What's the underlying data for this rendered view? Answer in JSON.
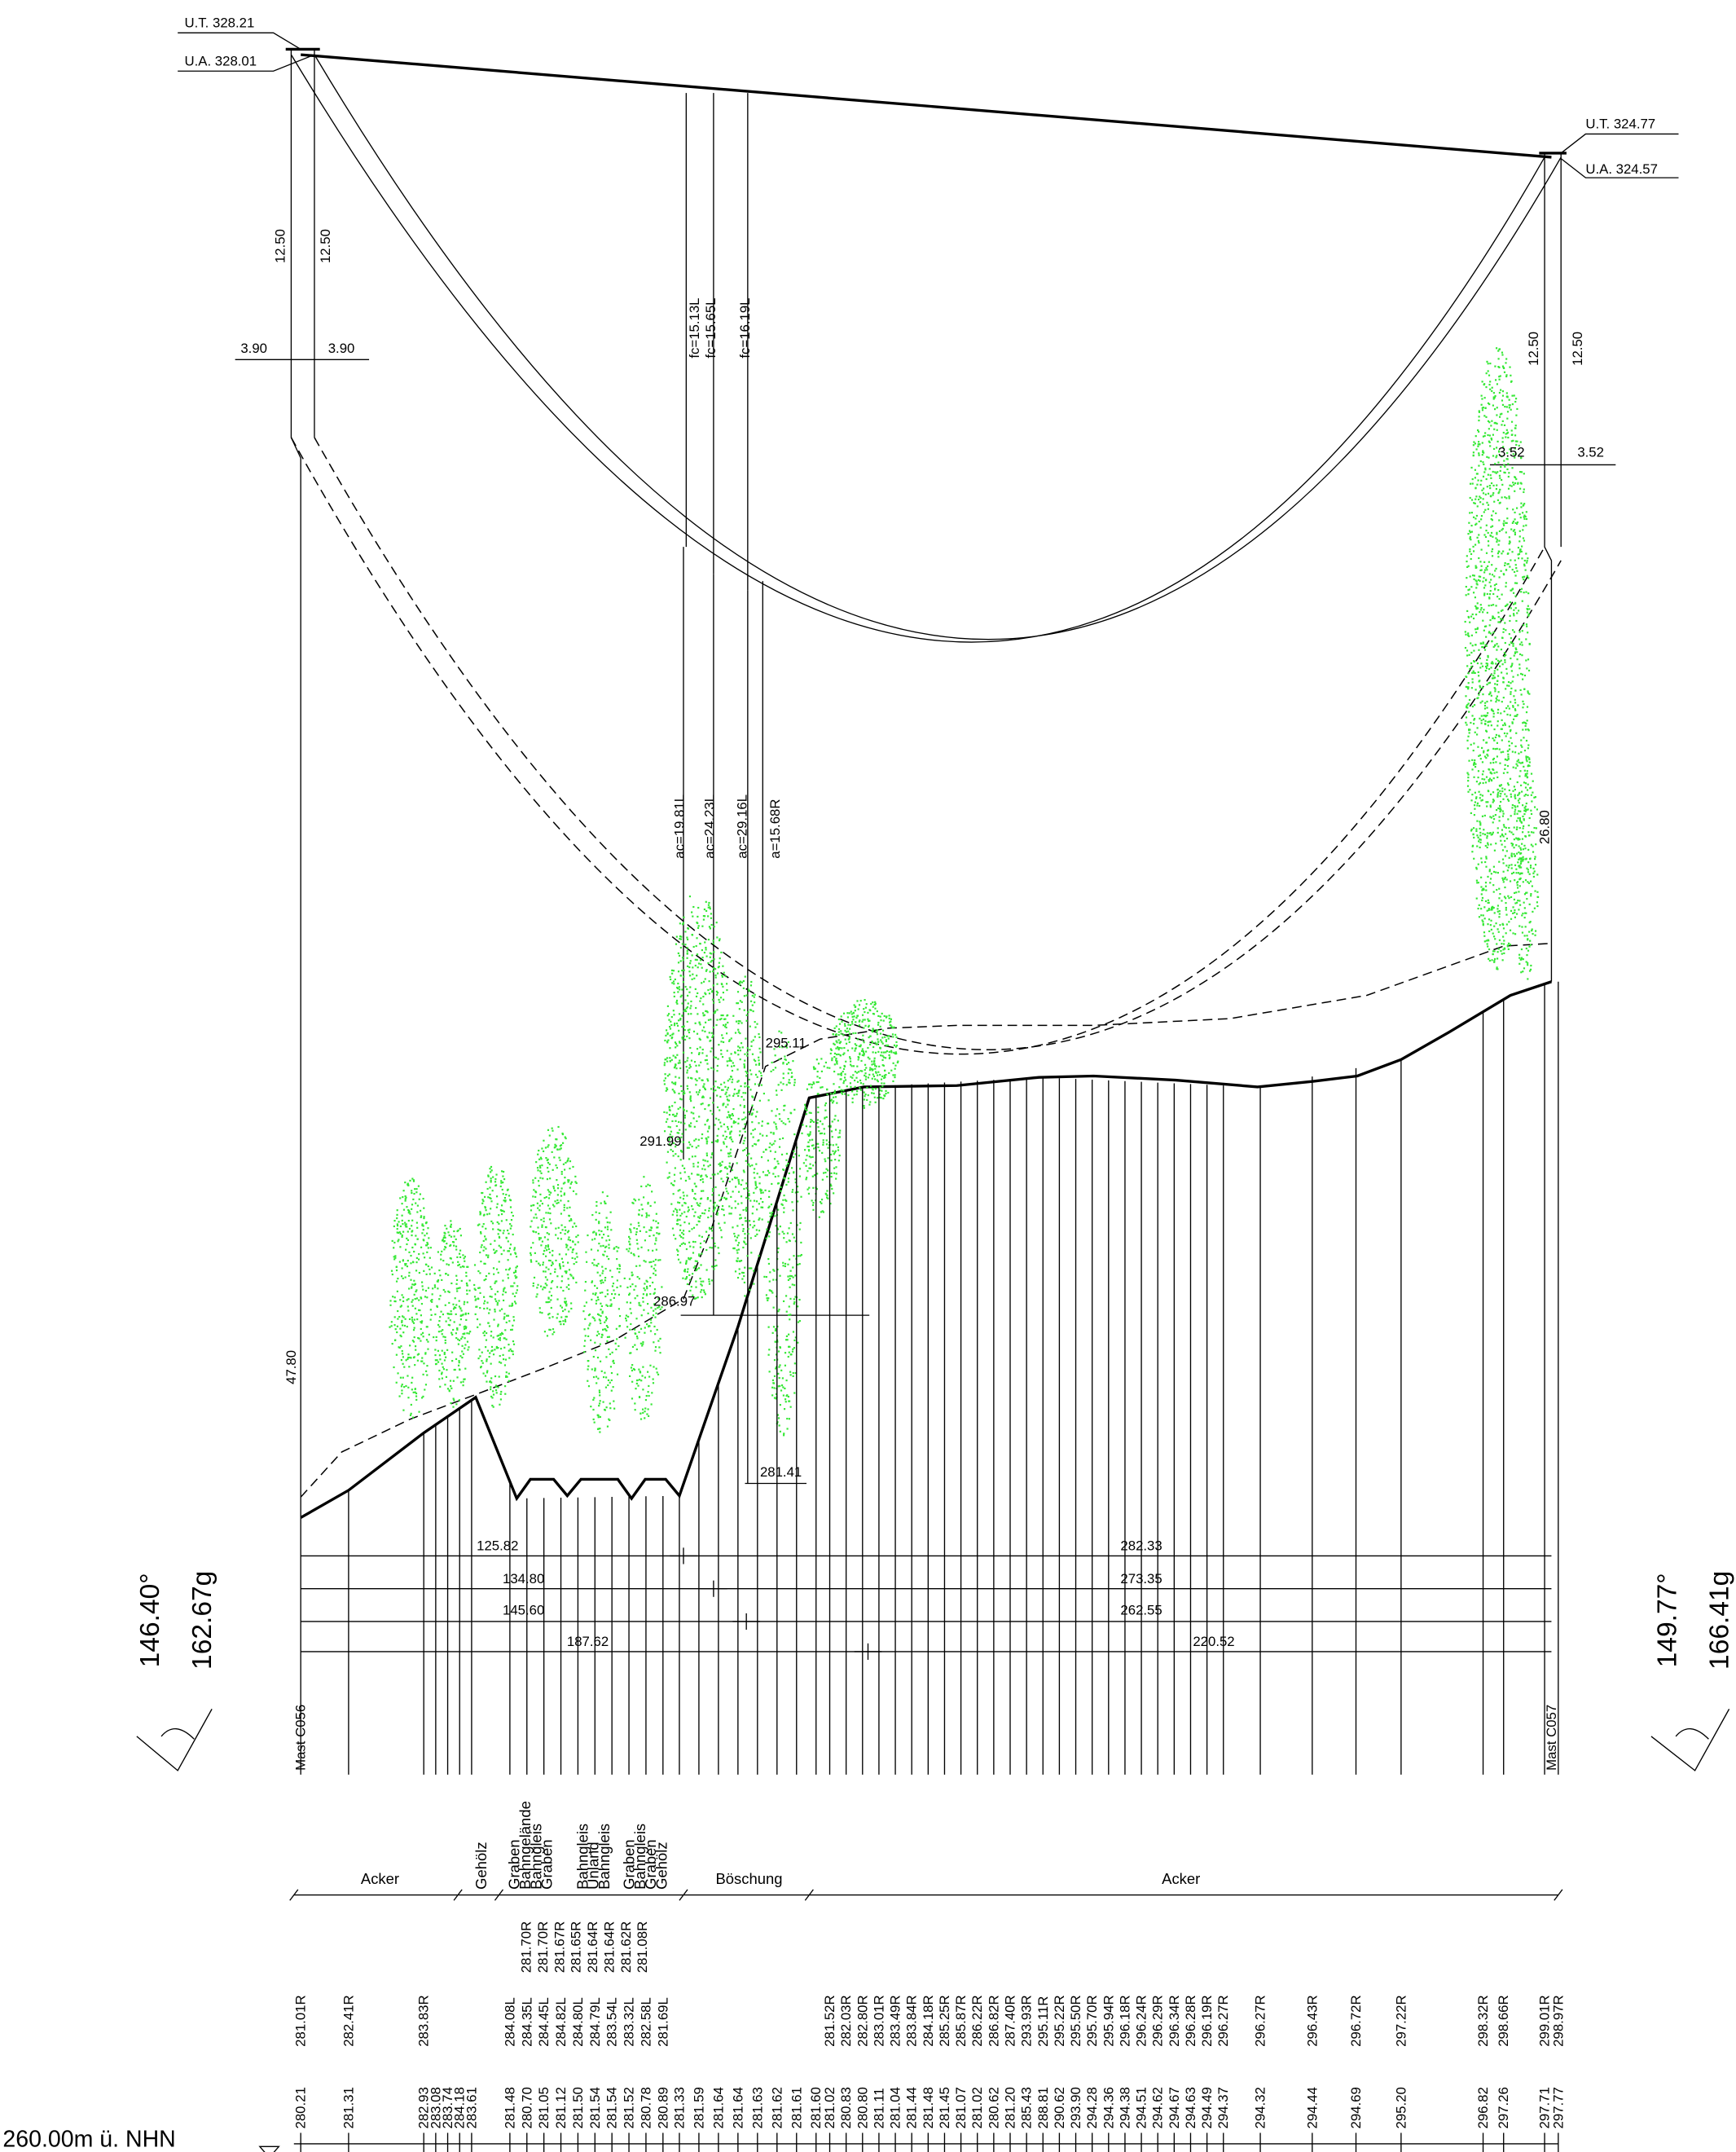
{
  "tower_labels": {
    "left_ut": "U.T. 328.21",
    "left_ua": "U.A. 328.01",
    "right_ut": "U.T. 324.77",
    "right_ua": "U.A. 324.57",
    "left_mast": "Mast C056",
    "right_mast": "Mast C057"
  },
  "measurements": {
    "left_height_1": "12.50",
    "left_height_2": "12.50",
    "right_height_1": "12.50",
    "right_height_2": "12.50",
    "left_offset_1": "3.90",
    "left_offset_2": "3.90",
    "right_offset_1": "3.52",
    "right_offset_2": "3.52",
    "left_tower": "47.80",
    "right_tower": "26.80"
  },
  "sags": [
    "fc=15.13L",
    "fc=15.65L",
    "fc=16.19L"
  ],
  "clearances": [
    "ac=19.81L",
    "ac=24.23L",
    "ac=29.16L",
    "a=15.68R"
  ],
  "spot_heights": [
    "295.11",
    "291.99",
    "286.97",
    "281.41"
  ],
  "spans": [
    "125.82",
    "282.33",
    "134.80",
    "273.35",
    "145.60",
    "262.55",
    "187.62",
    "220.52"
  ],
  "angles": {
    "left_deg": "146.40°",
    "left_gon": "162.67g",
    "right_deg": "149.77°",
    "right_gon": "166.41g"
  },
  "land_use": {
    "horizontal": [
      "Acker",
      "Böschung",
      "Acker"
    ],
    "vertical": [
      "Gehölz",
      "Graben",
      "Bahngelände",
      "Bahngleis",
      "Graben",
      "Bahngleis",
      "Unland",
      "Bahngleis",
      "Graben",
      "Bahngleis",
      "Graben",
      "Gehölz"
    ]
  },
  "conductor_heights": [
    "281.01R",
    "282.41R",
    "283.83R",
    "284.08L",
    "284.35L",
    "284.45L",
    "284.82L",
    "284.80L",
    "284.79L",
    "283.54L",
    "283.32L",
    "282.58L",
    "281.69L",
    "281.70R",
    "281.70R",
    "281.67R",
    "281.65R",
    "281.64R",
    "281.64R",
    "281.62R",
    "281.08R",
    "281.52R",
    "282.03R",
    "282.80R",
    "283.01R",
    "283.49R",
    "283.84R",
    "284.18R",
    "285.25R",
    "285.87R",
    "286.22R",
    "286.82R",
    "287.40R",
    "293.93R",
    "295.11R",
    "295.22R",
    "295.50R",
    "295.70R",
    "295.94R",
    "296.18R",
    "296.24R",
    "296.29R",
    "296.34R",
    "296.28R",
    "296.19R",
    "296.27R",
    "296.27R",
    "296.43R",
    "296.72R",
    "297.22R",
    "298.32R",
    "298.66R",
    "299.01R",
    "298.97R"
  ],
  "terrain_heights": [
    "280.21",
    "281.31",
    "282.93",
    "283.08",
    "283.74",
    "284.18",
    "283.61",
    "281.48",
    "280.70",
    "281.05",
    "281.12",
    "281.50",
    "281.54",
    "281.54",
    "281.52",
    "280.78",
    "280.89",
    "281.33",
    "281.59",
    "281.64",
    "281.64",
    "281.63",
    "281.62",
    "281.61",
    "281.60",
    "281.02",
    "280.83",
    "280.80",
    "281.11",
    "281.04",
    "281.44",
    "281.48",
    "281.45",
    "281.07",
    "281.02",
    "280.62",
    "281.20",
    "285.43",
    "288.81",
    "290.62",
    "293.90",
    "294.28",
    "294.36",
    "294.38",
    "294.51",
    "294.62",
    "294.67",
    "294.63",
    "294.49",
    "294.37",
    "294.32",
    "294.44",
    "294.69",
    "295.20",
    "296.82",
    "297.26",
    "297.71",
    "297.77"
  ],
  "datum": "260.00m ü. NHN"
}
